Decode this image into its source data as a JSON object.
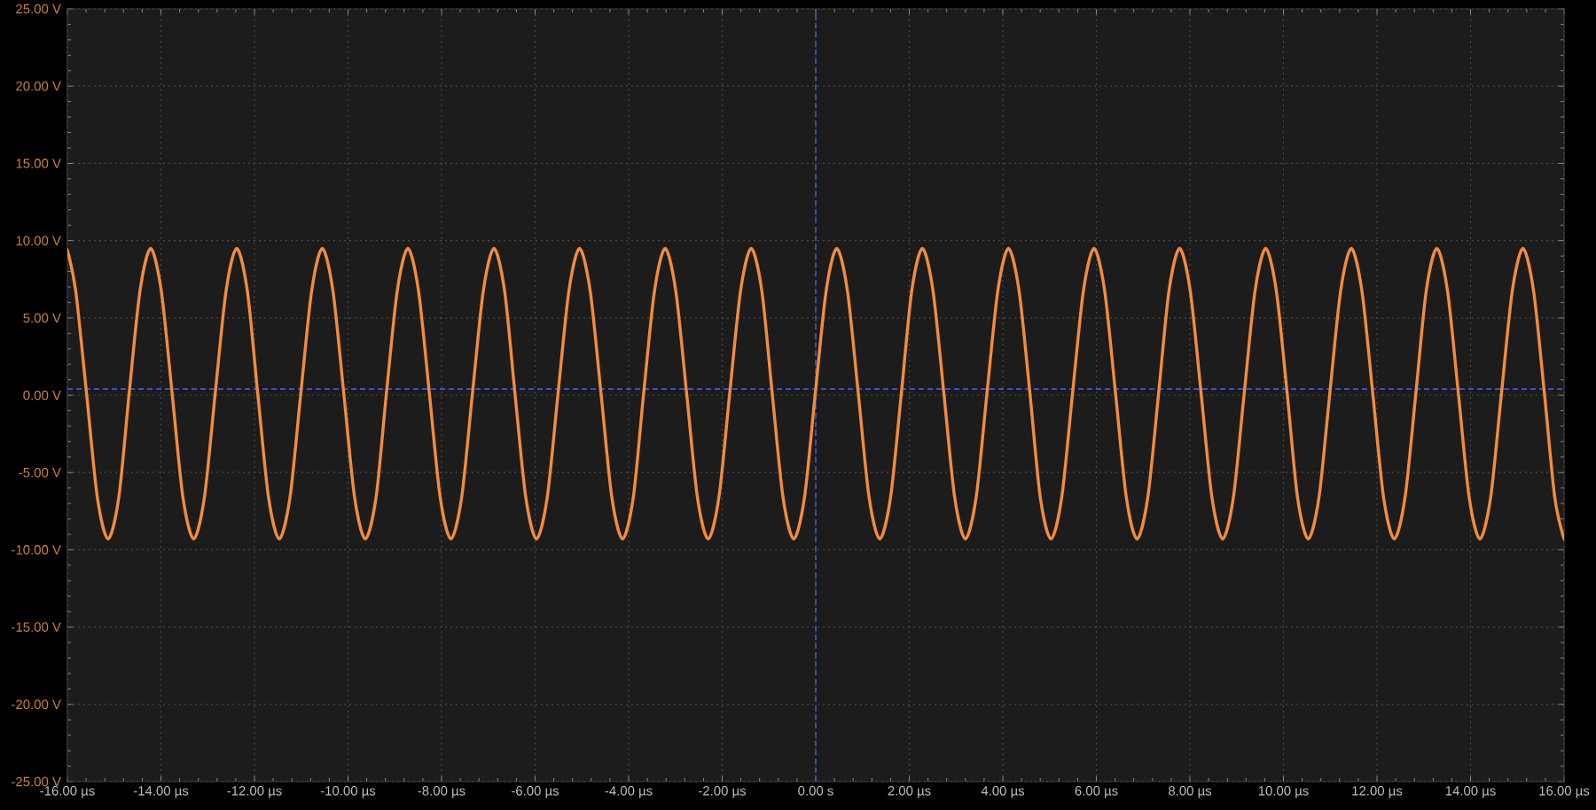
{
  "chart_data": {
    "type": "line",
    "color": "#f28c3c",
    "x": [
      -16.0,
      -15.82,
      -15.59,
      -15.36,
      -15.13,
      -14.9,
      -14.68,
      -14.45,
      -14.22,
      -13.99,
      -13.76,
      -13.53,
      -13.3,
      -13.07,
      -12.84,
      -12.61,
      -12.38,
      -12.15,
      -11.93,
      -11.7,
      -11.47,
      -11.24,
      -11.01,
      -10.78,
      -10.55,
      -10.32,
      -10.09,
      -9.86,
      -9.63,
      -9.4,
      -9.18,
      -8.95,
      -8.72,
      -8.49,
      -8.26,
      -8.03,
      -7.8,
      -7.57,
      -7.34,
      -7.11,
      -6.88,
      -6.65,
      -6.43,
      -6.2,
      -5.97,
      -5.74,
      -5.51,
      -5.28,
      -5.05,
      -4.82,
      -4.59,
      -4.36,
      -4.13,
      -3.9,
      -3.68,
      -3.45,
      -3.22,
      -2.99,
      -2.76,
      -2.53,
      -2.3,
      -2.07,
      -1.84,
      -1.61,
      -1.38,
      -1.15,
      -0.93,
      -0.7,
      -0.47,
      -0.24,
      -0.01,
      0.22,
      0.45,
      0.68,
      0.91,
      1.14,
      1.37,
      1.6,
      1.83,
      2.05,
      2.28,
      2.51,
      2.74,
      2.97,
      3.2,
      3.43,
      3.66,
      3.89,
      4.12,
      4.35,
      4.58,
      4.8,
      5.03,
      5.26,
      5.49,
      5.72,
      5.95,
      6.18,
      6.41,
      6.64,
      6.87,
      7.1,
      7.33,
      7.55,
      7.78,
      8.01,
      8.24,
      8.47,
      8.7,
      8.93,
      9.16,
      9.39,
      9.62,
      9.85,
      10.08,
      10.3,
      10.53,
      10.76,
      10.99,
      11.22,
      11.45,
      11.68,
      11.91,
      12.14,
      12.37,
      12.6,
      12.83,
      13.05,
      13.28,
      13.51,
      13.74,
      13.97,
      14.2,
      14.43,
      14.66,
      14.89,
      15.12,
      15.35,
      15.58,
      15.8,
      16.0
    ],
    "values": [
      9.4,
      6.7,
      0.1,
      -6.6,
      -9.3,
      -6.6,
      0.1,
      6.7,
      9.5,
      6.7,
      0.1,
      -6.6,
      -9.3,
      -6.6,
      0.1,
      6.7,
      9.5,
      6.7,
      0.1,
      -6.6,
      -9.3,
      -6.6,
      0.1,
      6.7,
      9.5,
      6.7,
      0.1,
      -6.6,
      -9.3,
      -6.6,
      0.1,
      6.7,
      9.5,
      6.7,
      0.1,
      -6.6,
      -9.3,
      -6.6,
      0.1,
      6.7,
      9.5,
      6.7,
      0.1,
      -6.6,
      -9.3,
      -6.6,
      0.1,
      6.7,
      9.5,
      6.7,
      0.1,
      -6.6,
      -9.3,
      -6.6,
      0.1,
      6.7,
      9.5,
      6.7,
      0.1,
      -6.6,
      -9.3,
      -6.6,
      0.1,
      6.7,
      9.5,
      6.7,
      0.1,
      -6.6,
      -9.3,
      -6.6,
      0.1,
      6.7,
      9.5,
      6.7,
      0.1,
      -6.6,
      -9.3,
      -6.6,
      0.1,
      6.7,
      9.5,
      6.7,
      0.1,
      -6.6,
      -9.3,
      -6.6,
      0.1,
      6.7,
      9.5,
      6.7,
      0.1,
      -6.6,
      -9.3,
      -6.6,
      0.1,
      6.7,
      9.5,
      6.7,
      0.1,
      -6.6,
      -9.3,
      -6.6,
      0.1,
      6.7,
      9.5,
      6.7,
      0.1,
      -6.6,
      -9.3,
      -6.6,
      0.1,
      6.7,
      9.5,
      6.7,
      0.1,
      -6.6,
      -9.3,
      -6.6,
      0.1,
      6.7,
      9.5,
      6.7,
      0.1,
      -6.6,
      -9.3,
      -6.6,
      0.1,
      6.7,
      9.5,
      6.7,
      0.1,
      -6.6,
      -9.3,
      -6.6,
      0.1,
      6.7,
      9.5,
      6.7,
      0.1,
      -6.6,
      -9.3
    ],
    "xlim": [
      -16,
      16
    ],
    "xticks": [
      {
        "value": -16,
        "label": "-16.00 µs"
      },
      {
        "value": -14,
        "label": "-14.00 µs"
      },
      {
        "value": -12,
        "label": "-12.00 µs"
      },
      {
        "value": -10,
        "label": "-10.00 µs"
      },
      {
        "value": -8,
        "label": "-8.00 µs"
      },
      {
        "value": -6,
        "label": "-6.00 µs"
      },
      {
        "value": -4,
        "label": "-4.00 µs"
      },
      {
        "value": -2,
        "label": "-2.00 µs"
      },
      {
        "value": 0,
        "label": "0.00 s"
      },
      {
        "value": 2,
        "label": "2.00 µs"
      },
      {
        "value": 4,
        "label": "4.00 µs"
      },
      {
        "value": 6,
        "label": "6.00 µs"
      },
      {
        "value": 8,
        "label": "8.00 µs"
      },
      {
        "value": 10,
        "label": "10.00 µs"
      },
      {
        "value": 12,
        "label": "12.00 µs"
      },
      {
        "value": 14,
        "label": "14.00 µs"
      },
      {
        "value": 16,
        "label": "16.00 µs"
      }
    ],
    "ylim": [
      -25,
      25
    ],
    "yticks": [
      {
        "value": -25,
        "label": "-25.00 V"
      },
      {
        "value": -20,
        "label": "-20.00 V"
      },
      {
        "value": -15,
        "label": "-15.00 V"
      },
      {
        "value": -10,
        "label": "-10.00 V"
      },
      {
        "value": -5,
        "label": "-5.00 V"
      },
      {
        "value": 0,
        "label": "0.00 V"
      },
      {
        "value": 5,
        "label": "5.00 V"
      },
      {
        "value": 10,
        "label": "10.00 V"
      },
      {
        "value": 15,
        "label": "15.00 V"
      },
      {
        "value": 20,
        "label": "20.00 V"
      },
      {
        "value": 25,
        "label": "25.00 V"
      }
    ],
    "grid": true,
    "ref_lines": [
      {
        "axis": "x",
        "value": 0,
        "color": "#3d4fc4",
        "line_style": "dashed"
      },
      {
        "axis": "y",
        "value": 0.4,
        "color": "#3d4fc4",
        "line_style": "dashed"
      }
    ]
  }
}
